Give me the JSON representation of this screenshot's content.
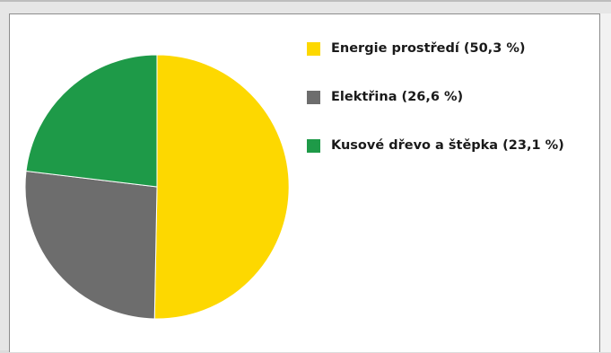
{
  "chart_data": {
    "type": "pie",
    "title": "",
    "slices": [
      {
        "label": "Energie prostředí (50,3 %)",
        "value": 50.3,
        "color": "#fdd800"
      },
      {
        "label": "Elektřina (26,6 %)",
        "value": 26.6,
        "color": "#6d6d6d"
      },
      {
        "label": "Kusové dřevo a štěpka (23,1 %)",
        "value": 23.1,
        "color": "#1e9a48"
      }
    ],
    "legend_position": "right",
    "start_angle": "12 o'clock",
    "direction": "clockwise"
  }
}
